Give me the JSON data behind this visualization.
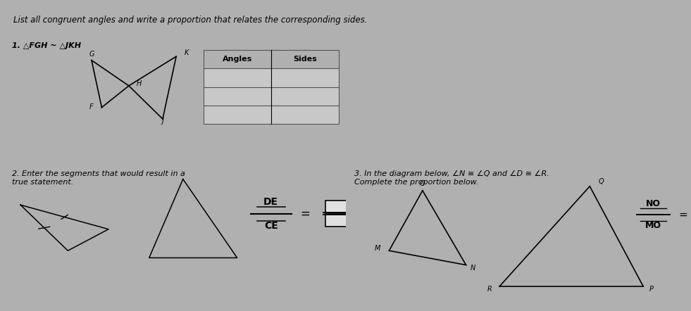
{
  "bg_color": "#b0b0b0",
  "cell_bg": "#c8c8c8",
  "header_bg": "#b8b8b8",
  "title_text": "List all congruent angles and write a proportion that relates the corresponding sides.",
  "p1_label": "1. △FGH ~ △JKH",
  "p2_label": "2. Enter the segments that would result in a\ntrue statement.",
  "p3_label": "3. In the diagram below, ∠N ≅ ∠Q and ∠D ≅ ∠R.\nComplete the proportion below.",
  "angles_header": "Angles",
  "sides_header": "Sides",
  "frac1_num": "DE",
  "frac1_den": "CE",
  "frac2_num": "NO",
  "frac2_den": "MO",
  "title_fs": 8.5,
  "label_fs": 8,
  "small_fs": 7
}
